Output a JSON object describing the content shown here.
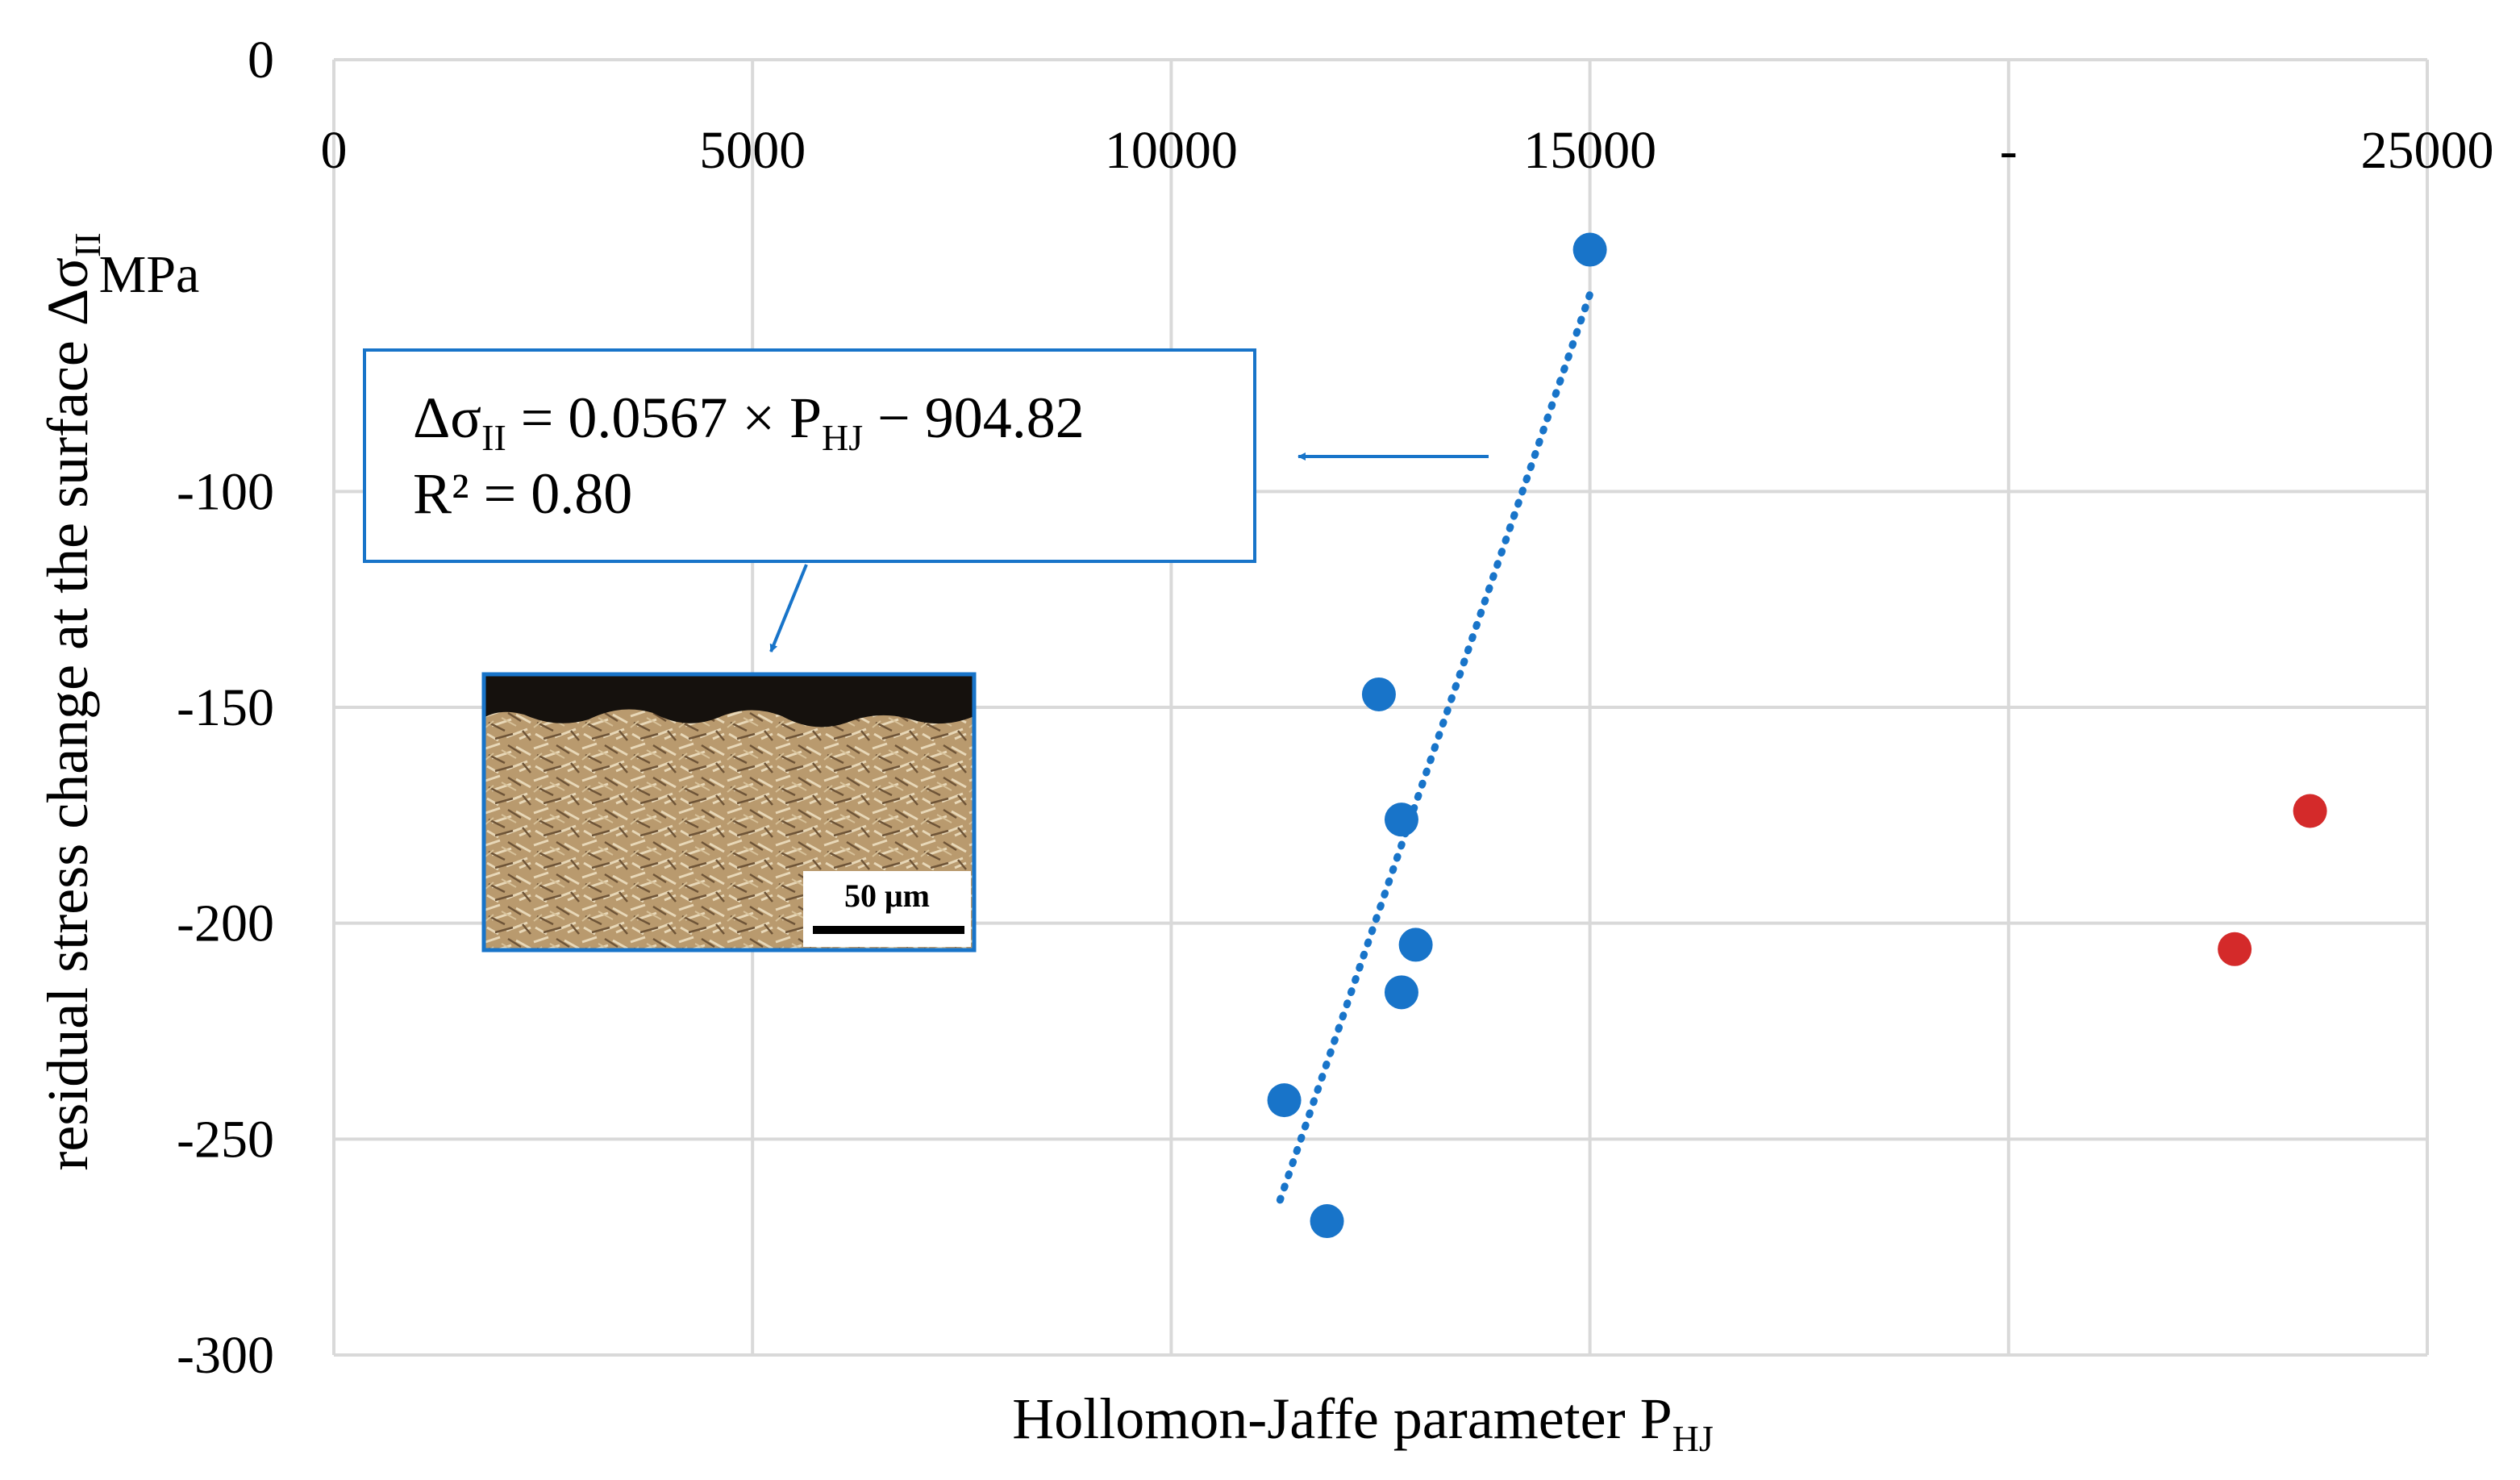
{
  "chart_data": {
    "type": "scatter",
    "xlabel": "Hollomon-Jaffe parameter",
    "xlabel_symbol": "P",
    "xlabel_subscript": "HJ",
    "ylabel": "residual stress change at the surface Δσ",
    "ylabel_subscript": "II",
    "y_unit": "MPa",
    "xlim": [
      0,
      25000
    ],
    "ylim": [
      -300,
      0
    ],
    "x_ticks": [
      "0",
      "5000",
      "10000",
      "15000",
      "-",
      "25000"
    ],
    "y_ticks": [
      "0",
      "-100",
      "-150",
      "-200",
      "-250",
      "-300"
    ],
    "x_tick_values": [
      0,
      5000,
      10000,
      15000,
      20000,
      25000
    ],
    "y_tick_values": [
      0,
      -100,
      -150,
      -200,
      -250,
      -300
    ],
    "x_ticks_position": "top",
    "grid": true,
    "series": [
      {
        "color": "#1874c9",
        "points": [
          {
            "x": 15000,
            "y": -44
          },
          {
            "x": 12480,
            "y": -147
          },
          {
            "x": 12750,
            "y": -176
          },
          {
            "x": 12920,
            "y": -205
          },
          {
            "x": 12750,
            "y": -216
          },
          {
            "x": 11350,
            "y": -241
          },
          {
            "x": 11860,
            "y": -269
          }
        ]
      },
      {
        "color": "#d42a2a",
        "points": [
          {
            "x": 22700,
            "y": -206
          },
          {
            "x": 23600,
            "y": -174
          }
        ]
      }
    ],
    "trendline": {
      "style": "dotted",
      "color": "#1874c9",
      "x_range": [
        11300,
        15000
      ],
      "slope": 0.0567,
      "intercept": -904.82,
      "equation": {
        "lhs_symbol": "Δσ",
        "lhs_sub": "II",
        "middle": " = 0.0567 ×  P",
        "p_sub": "HJ",
        "rhs": " − 904.82",
        "r2": "R² = 0.80"
      }
    },
    "inset": {
      "scale_bar_label": "50 μm"
    }
  }
}
